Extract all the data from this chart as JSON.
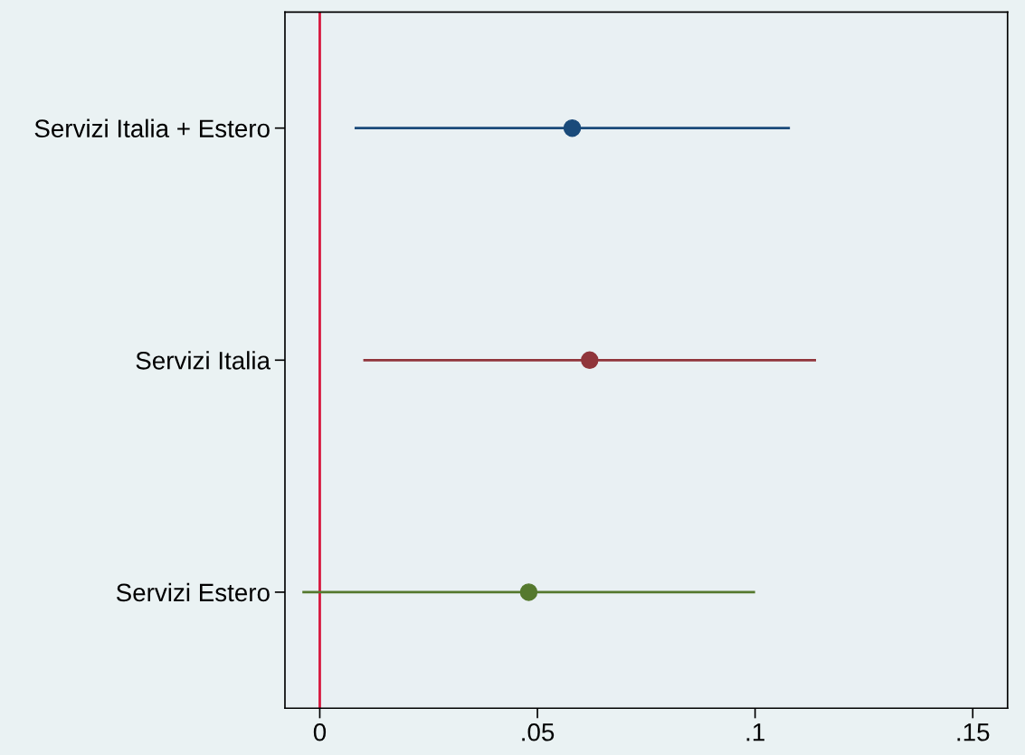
{
  "chart_data": {
    "type": "scatter",
    "orientation": "horizontal",
    "categories": [
      "Servizi Italia + Estero",
      "Servizi Italia",
      "Servizi Estero"
    ],
    "values": [
      0.058,
      0.062,
      0.048
    ],
    "errors": [
      [
        0.008,
        0.108
      ],
      [
        0.01,
        0.114
      ],
      [
        -0.004,
        0.1
      ]
    ],
    "colors": [
      "#1a4a7a",
      "#90353b",
      "#55792e"
    ],
    "marker": "circle",
    "xlim": [
      -0.008,
      0.158
    ],
    "xticks": [
      {
        "value": 0,
        "label": "0"
      },
      {
        "value": 0.05,
        "label": ".05"
      },
      {
        "value": 0.1,
        "label": ".1"
      },
      {
        "value": 0.15,
        "label": ".15"
      }
    ],
    "ref_lines": [
      {
        "axis": "x",
        "value": 0,
        "label": null,
        "color": "#d6163c"
      }
    ],
    "grid": false,
    "legend": false
  }
}
